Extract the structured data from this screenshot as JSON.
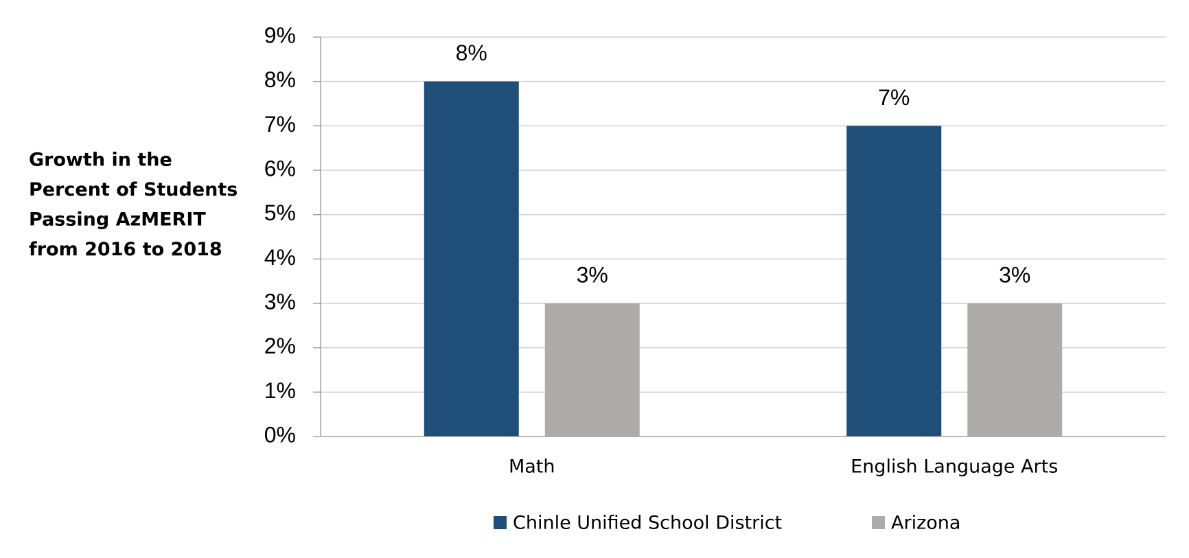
{
  "chart_data": {
    "type": "bar",
    "y_label": [
      "Growth in the",
      "Percent of Students",
      "Passing AzMERIT",
      "from 2016 to 2018"
    ],
    "categories": [
      "Math",
      "English Language Arts"
    ],
    "series": [
      {
        "name": "Chinle Unified School District",
        "color": "#1f4e79",
        "values": [
          8,
          7
        ],
        "value_labels": [
          "8%",
          "7%"
        ]
      },
      {
        "name": "Arizona",
        "color": "#aeabab",
        "values": [
          3,
          3
        ],
        "value_labels": [
          "3%",
          "3%"
        ]
      }
    ],
    "ylim": [
      0,
      9
    ],
    "yticks": [
      {
        "value": 0,
        "label": "0%"
      },
      {
        "value": 1,
        "label": "1%"
      },
      {
        "value": 2,
        "label": "2%"
      },
      {
        "value": 3,
        "label": "3%"
      },
      {
        "value": 4,
        "label": "4%"
      },
      {
        "value": 5,
        "label": "5%"
      },
      {
        "value": 6,
        "label": "6%"
      },
      {
        "value": 7,
        "label": "7%"
      },
      {
        "value": 8,
        "label": "8%"
      },
      {
        "value": 9,
        "label": "9%"
      }
    ],
    "grid": true
  }
}
